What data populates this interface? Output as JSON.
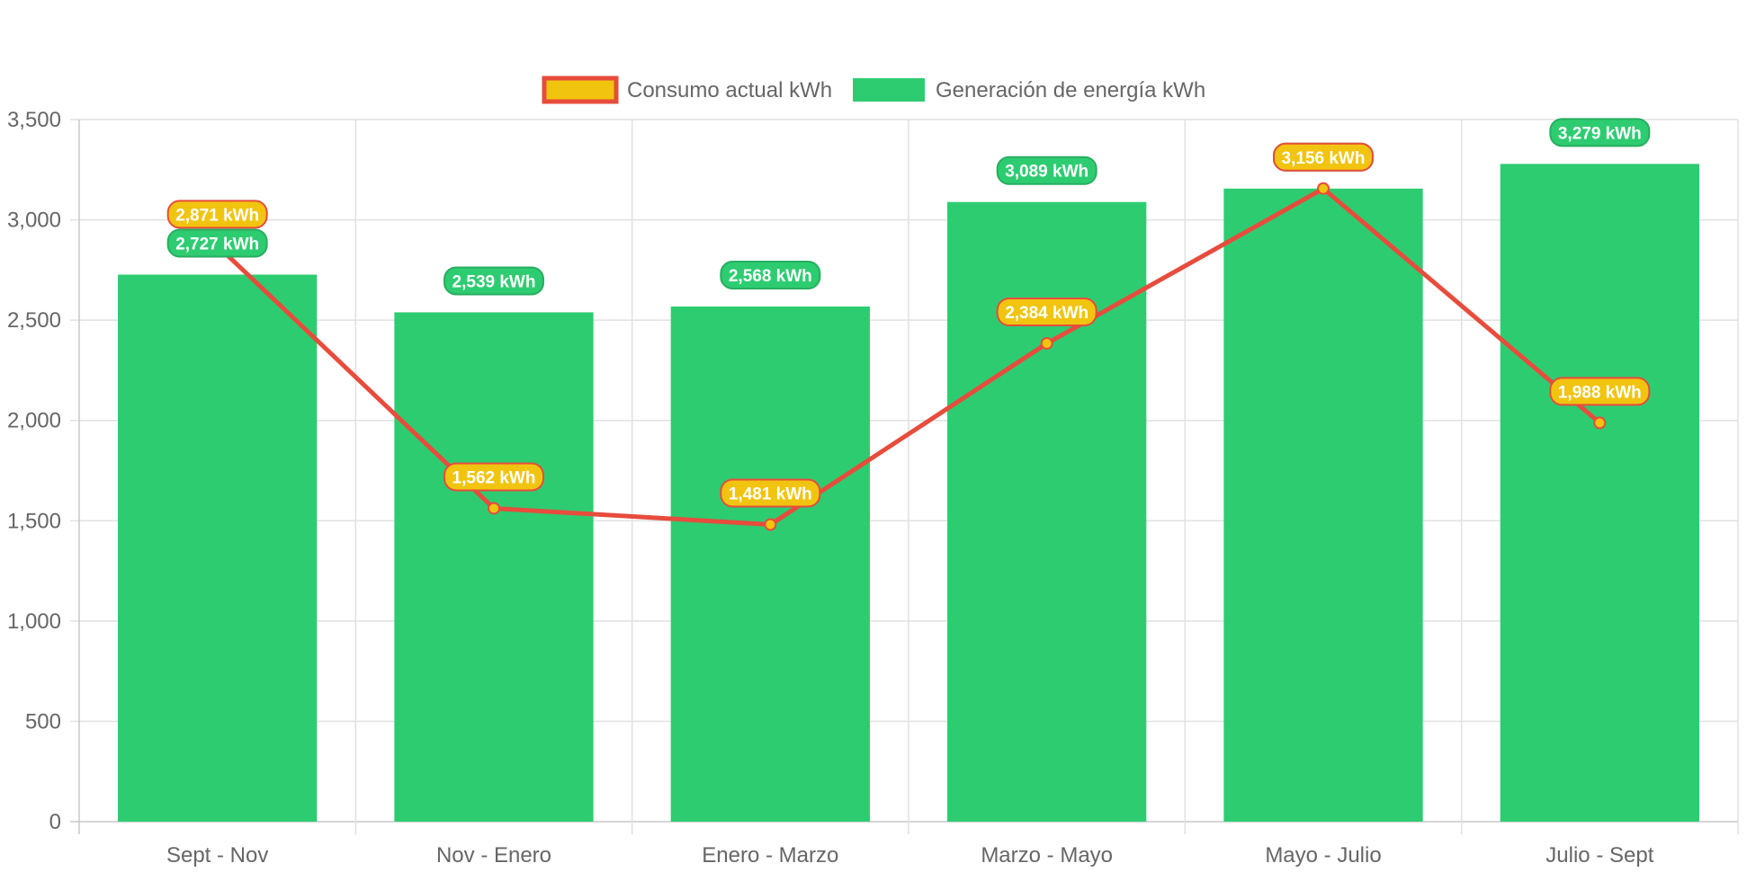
{
  "chart_data": {
    "type": "bar",
    "categories": [
      "Sept - Nov",
      "Nov - Enero",
      "Enero - Marzo",
      "Marzo - Mayo",
      "Mayo - Julio",
      "Julio - Sept"
    ],
    "series": [
      {
        "name": "Consumo actual kWh",
        "type": "line",
        "values": [
          2871,
          1562,
          1481,
          2384,
          3156,
          1988
        ],
        "labels": [
          "2,871 kWh",
          "1,562 kWh",
          "1,481 kWh",
          "2,384 kWh",
          "3,156 kWh",
          "1,988 kWh"
        ],
        "line_color": "#e74c3c",
        "fill_color": "#f1c40f"
      },
      {
        "name": "Generación de energía kWh",
        "type": "bar",
        "values": [
          2727,
          2539,
          2568,
          3089,
          3156,
          3279
        ],
        "labels": [
          "2,727 kWh",
          "2,539 kWh",
          "2,568 kWh",
          "3,089 kWh",
          "3,156 kWh",
          "3,279 kWh"
        ],
        "color": "#2ecc71",
        "border_color": "#27ae60"
      }
    ],
    "yticks": [
      "0",
      "500",
      "1,000",
      "1,500",
      "2,000",
      "2,500",
      "3,000",
      "3,500"
    ],
    "ylim": [
      0,
      3500
    ],
    "grid": true,
    "legend_position": "top"
  }
}
